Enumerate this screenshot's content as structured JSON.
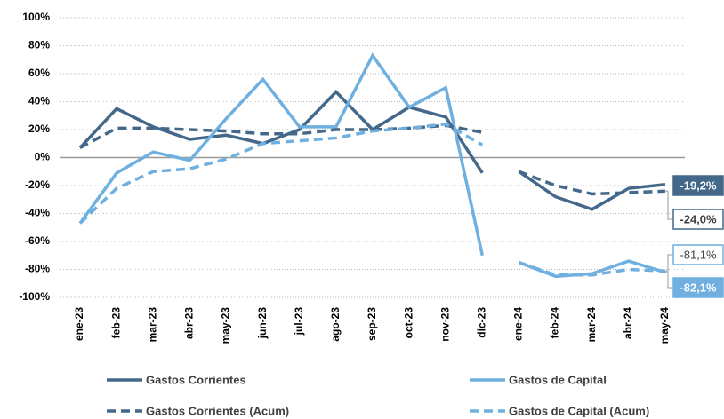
{
  "chart_data": {
    "type": "line",
    "categories": [
      "ene-23",
      "feb-23",
      "mar-23",
      "abr-23",
      "may-23",
      "jun-23",
      "jul-23",
      "ago-23",
      "sep-23",
      "oct-23",
      "nov-23",
      "dic-23",
      "ene-24",
      "feb-24",
      "mar-24",
      "abr-24",
      "may-24"
    ],
    "ylim": [
      -100,
      100
    ],
    "yticks": [
      {
        "value": -100,
        "label": "-100%"
      },
      {
        "value": -80,
        "label": "-80%"
      },
      {
        "value": -60,
        "label": "-60%"
      },
      {
        "value": -40,
        "label": "-40%"
      },
      {
        "value": -20,
        "label": "-20%"
      },
      {
        "value": 0,
        "label": "0%"
      },
      {
        "value": 20,
        "label": "20%"
      },
      {
        "value": 40,
        "label": "40%"
      },
      {
        "value": 60,
        "label": "60%"
      },
      {
        "value": 80,
        "label": "80%"
      },
      {
        "value": 100,
        "label": "100%"
      }
    ],
    "grid": true,
    "series": [
      {
        "name": "Gastos Corrientes",
        "color": "#44688a",
        "dashed": false,
        "values": [
          7,
          35,
          22,
          13,
          16,
          10,
          20,
          47,
          20,
          36,
          29,
          -11,
          -10,
          -28,
          -37,
          -22,
          -19.2
        ],
        "value_labels": [
          null,
          null,
          null,
          null,
          null,
          null,
          null,
          null,
          null,
          null,
          null,
          null,
          null,
          null,
          null,
          null,
          "-19,2%"
        ]
      },
      {
        "name": "Gastos de Capital",
        "color": "#6fb0e0",
        "dashed": false,
        "values": [
          -47,
          -11,
          4,
          -2,
          28,
          56,
          22,
          22,
          73,
          36,
          50,
          -70,
          -75,
          -85,
          -83,
          -74,
          -82.1
        ],
        "value_labels": [
          null,
          null,
          null,
          null,
          null,
          null,
          null,
          null,
          null,
          null,
          null,
          null,
          null,
          null,
          null,
          null,
          "-82,1%"
        ]
      },
      {
        "name": "Gastos Corrientes (Acum)",
        "color": "#44688a",
        "dashed": true,
        "values": [
          7,
          21,
          21,
          20,
          19,
          17,
          17,
          20,
          20,
          21,
          23,
          18,
          -10,
          -20,
          -26,
          -25,
          -24.0
        ],
        "value_labels": [
          null,
          null,
          null,
          null,
          null,
          null,
          null,
          null,
          null,
          null,
          null,
          null,
          null,
          null,
          null,
          null,
          "-24,0%"
        ]
      },
      {
        "name": "Gastos de Capital (Acum)",
        "color": "#6fb0e0",
        "dashed": true,
        "values": [
          -47,
          -22,
          -10,
          -8,
          -1,
          10,
          12,
          14,
          19,
          21,
          24,
          9,
          -75,
          -84,
          -84,
          -80,
          -81.1
        ],
        "value_labels": [
          null,
          null,
          null,
          null,
          null,
          null,
          null,
          null,
          null,
          null,
          null,
          null,
          null,
          null,
          null,
          null,
          "-81,1%"
        ]
      }
    ]
  }
}
